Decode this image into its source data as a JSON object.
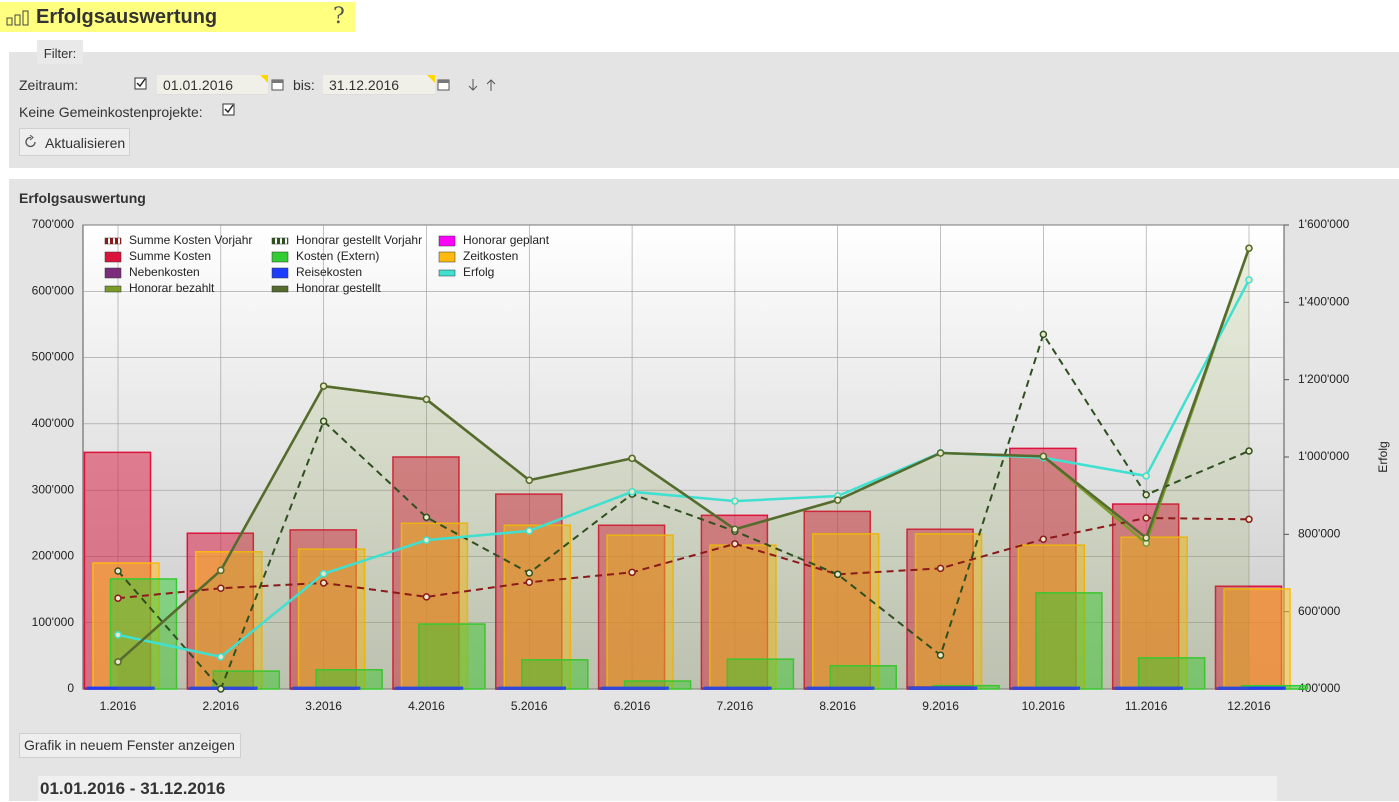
{
  "header": {
    "title": "Erfolgsauswertung",
    "help": "?"
  },
  "filter": {
    "tab": "Filter:",
    "period_label": "Zeitraum:",
    "from": "01.01.2016",
    "to_label": "bis:",
    "to": "31.12.2016",
    "no_overhead_label": "Keine Gemeinkostenprojekte:",
    "refresh": "Aktualisieren"
  },
  "chart_data": {
    "type": "combo",
    "title": "Erfolgsauswertung",
    "y2_label": "Erfolg",
    "categories": [
      "1.2016",
      "2.2016",
      "3.2016",
      "4.2016",
      "5.2016",
      "6.2016",
      "7.2016",
      "8.2016",
      "9.2016",
      "10.2016",
      "11.2016",
      "12.2016"
    ],
    "ylim": [
      0,
      700000
    ],
    "yticks": [
      0,
      {
        "value": 100000,
        "label": "100'000"
      },
      {
        "value": 200000,
        "label": "200'000"
      },
      {
        "value": 300000,
        "label": "300'000"
      },
      {
        "value": 400000,
        "label": "400'000"
      },
      {
        "value": 500000,
        "label": "500'000"
      },
      {
        "value": 600000,
        "label": "600'000"
      },
      {
        "value": 700000,
        "label": "700'000"
      }
    ],
    "y2lim": [
      400000,
      1600000
    ],
    "y2ticks": [
      {
        "value": 400000,
        "label": "400'000"
      },
      {
        "value": 600000,
        "label": "600'000"
      },
      {
        "value": 800000,
        "label": "800'000"
      },
      {
        "value": 1000000,
        "label": "1'000'000"
      },
      {
        "value": 1200000,
        "label": "1'200'000"
      },
      {
        "value": 1400000,
        "label": "1'400'000"
      },
      {
        "value": 1600000,
        "label": "1'600'000"
      }
    ],
    "grid": true,
    "series": [
      {
        "name": "Summe Kosten Vorjahr",
        "kind": "dashed-line",
        "color": "#8b1a1a",
        "values": [
          137000,
          152000,
          160000,
          139000,
          161000,
          176000,
          219000,
          173000,
          182000,
          226000,
          258000,
          256000
        ]
      },
      {
        "name": "Honorar gestellt Vorjahr",
        "kind": "dashed-line",
        "color": "#2f4f1f",
        "values": [
          178000,
          0,
          404000,
          259000,
          175000,
          294000,
          238000,
          173000,
          51000,
          535000,
          293000,
          359000
        ]
      },
      {
        "name": "Honorar geplant",
        "kind": "bar",
        "color": "#ff00ff",
        "values": [
          0,
          0,
          0,
          0,
          0,
          0,
          0,
          0,
          0,
          0,
          0,
          0
        ]
      },
      {
        "name": "Summe Kosten",
        "kind": "bar",
        "color": "#dc143c",
        "values": [
          357000,
          235000,
          240000,
          350000,
          294000,
          247000,
          262000,
          268000,
          241000,
          363000,
          279000,
          155000
        ]
      },
      {
        "name": "Kosten (Extern)",
        "kind": "bar",
        "color": "#32cd32",
        "values": [
          166000,
          27000,
          29000,
          98000,
          44000,
          12000,
          45000,
          35000,
          5000,
          145000,
          47000,
          5000
        ]
      },
      {
        "name": "Zeitkosten",
        "kind": "bar",
        "color": "#ffb90f",
        "values": [
          190000,
          207000,
          211000,
          250000,
          247000,
          232000,
          217000,
          234000,
          234000,
          217000,
          229000,
          151000
        ]
      },
      {
        "name": "Nebenkosten",
        "kind": "bar",
        "color": "#7b2c7b",
        "values": [
          1500,
          1500,
          1500,
          1500,
          1500,
          1500,
          1500,
          1500,
          3000,
          1500,
          2000,
          1500
        ]
      },
      {
        "name": "Reisekosten",
        "kind": "bar",
        "color": "#1e3cff",
        "values": [
          2500,
          2500,
          2500,
          2500,
          2500,
          2500,
          2500,
          2500,
          2500,
          2500,
          2500,
          2500
        ]
      },
      {
        "name": "Erfolg",
        "kind": "line",
        "axis": "y2",
        "color": "#40e0d0",
        "values": [
          540000,
          483000,
          698000,
          785000,
          809000,
          910000,
          886000,
          899000,
          1011000,
          998000,
          951000,
          1458000
        ]
      },
      {
        "name": "Honorar bezahlt",
        "kind": "area",
        "color": "#7a9a2a",
        "values": [
          41000,
          179000,
          457000,
          437000,
          315000,
          348000,
          241000,
          285000,
          356000,
          351000,
          220000,
          665000
        ]
      },
      {
        "name": "Honorar gestellt",
        "kind": "line",
        "color": "#556b2f",
        "values": [
          41000,
          179000,
          457000,
          437000,
          315000,
          348000,
          241000,
          285000,
          356000,
          351000,
          228000,
          665000
        ]
      }
    ]
  },
  "footer": {
    "popup": "Grafik in neuem Fenster anzeigen",
    "range": "01.01.2016 - 31.12.2016"
  }
}
